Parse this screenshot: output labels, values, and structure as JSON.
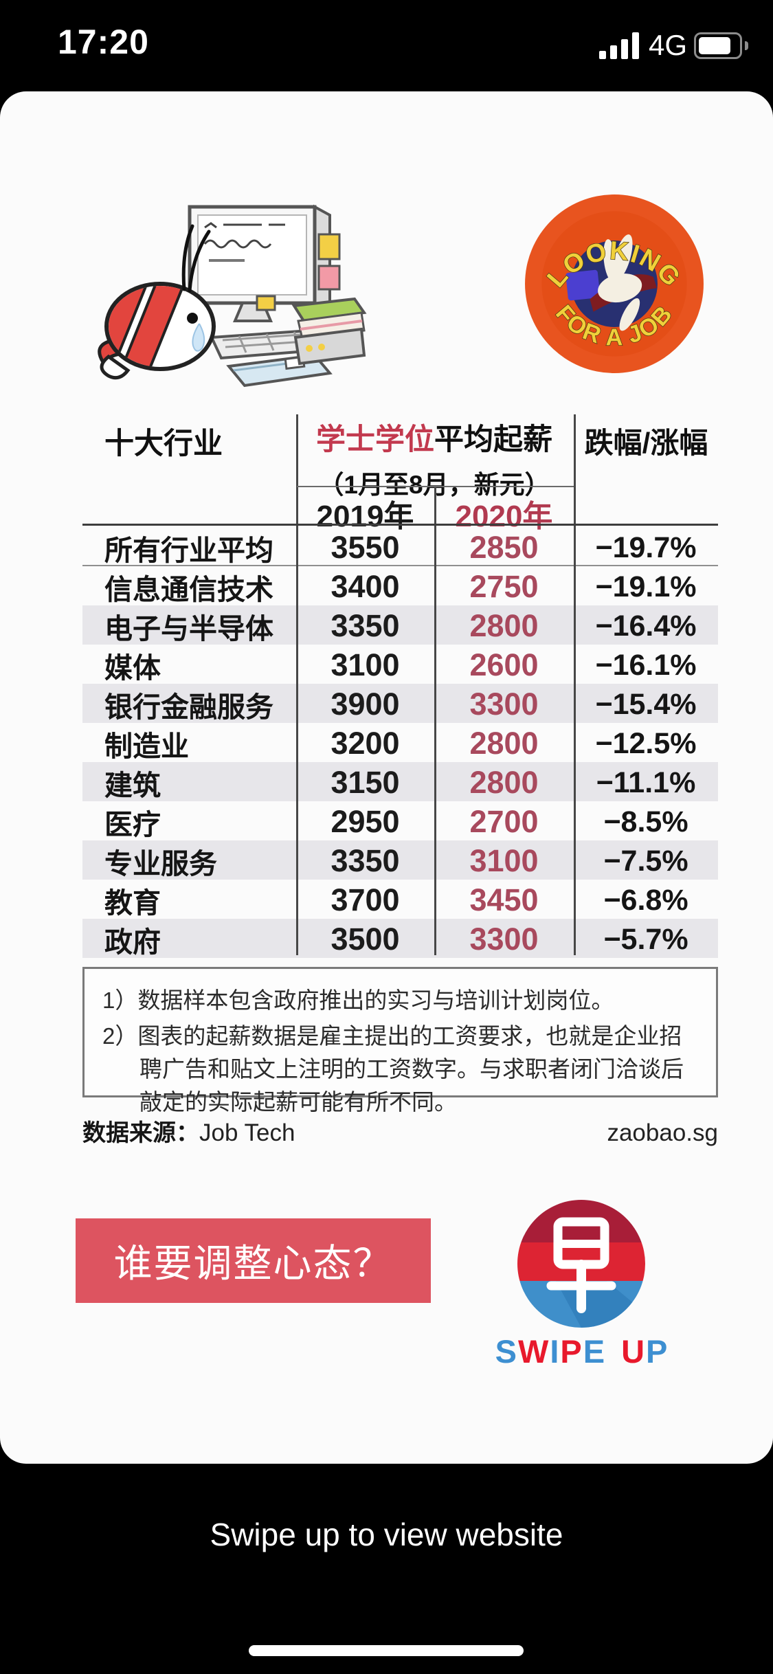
{
  "status_bar": {
    "time": "17:20",
    "network": "4G"
  },
  "stickers": {
    "badge_top": "LOOKING",
    "badge_bottom": "FOR A JOB"
  },
  "table": {
    "col_industry": "十大行业",
    "group_header_red": "学士学位",
    "group_header_black": "平均起薪",
    "group_subtitle": "（1月至8月，新元）",
    "col_2019": "2019年",
    "col_2020": "2020年",
    "col_change": "跌幅/涨幅",
    "rows": [
      {
        "industry": "所有行业平均",
        "y2019": "3550",
        "y2020": "2850",
        "change": "−19.7%"
      },
      {
        "industry": "信息通信技术",
        "y2019": "3400",
        "y2020": "2750",
        "change": "−19.1%"
      },
      {
        "industry": "电子与半导体",
        "y2019": "3350",
        "y2020": "2800",
        "change": "−16.4%"
      },
      {
        "industry": "媒体",
        "y2019": "3100",
        "y2020": "2600",
        "change": "−16.1%"
      },
      {
        "industry": "银行金融服务",
        "y2019": "3900",
        "y2020": "3300",
        "change": "−15.4%"
      },
      {
        "industry": "制造业",
        "y2019": "3200",
        "y2020": "2800",
        "change": "−12.5%"
      },
      {
        "industry": "建筑",
        "y2019": "3150",
        "y2020": "2800",
        "change": "−11.1%"
      },
      {
        "industry": "医疗",
        "y2019": "2950",
        "y2020": "2700",
        "change": "−8.5%"
      },
      {
        "industry": "专业服务",
        "y2019": "3350",
        "y2020": "3100",
        "change": "−7.5%"
      },
      {
        "industry": "教育",
        "y2019": "3700",
        "y2020": "3450",
        "change": "−6.8%"
      },
      {
        "industry": "政府",
        "y2019": "3500",
        "y2020": "3300",
        "change": "−5.7%"
      }
    ],
    "footnotes": [
      "1）数据样本包含政府推出的实习与培训计划岗位。",
      "2）图表的起薪数据是雇主提出的工资要求，也就是企业招聘广告和贴文上注明的工资数字。与求职者闭门洽谈后敲定的实际起薪可能有所不同。"
    ],
    "source_label": "数据来源：",
    "source_name": "Job Tech",
    "source_site": "zaobao.sg"
  },
  "cta": {
    "question": "谁要调整心态？",
    "swipe_up_letters": [
      {
        "ch": "S",
        "color": "blue"
      },
      {
        "ch": "W",
        "color": "red"
      },
      {
        "ch": "I",
        "color": "blue"
      },
      {
        "ch": "P",
        "color": "red"
      },
      {
        "ch": "E",
        "color": "blue"
      },
      {
        "ch": " ",
        "color": "none"
      },
      {
        "ch": "U",
        "color": "red"
      },
      {
        "ch": "P",
        "color": "blue"
      }
    ],
    "swipe_hint": "Swipe up to view website"
  },
  "colors": {
    "accent_red": "#c2394e",
    "value_red": "#a8495d",
    "stripe_gray": "#e7e6ea",
    "cta_red": "#dd5460",
    "logo_dark_red": "#a81e38",
    "logo_red": "#dd2433",
    "logo_blue": "#3f8fca",
    "swipe_blue": "#3d8fd1",
    "swipe_red": "#e8192c",
    "badge_orange": "#e8541f",
    "badge_navy": "#283071",
    "badge_yellow": "#f0d03a"
  }
}
